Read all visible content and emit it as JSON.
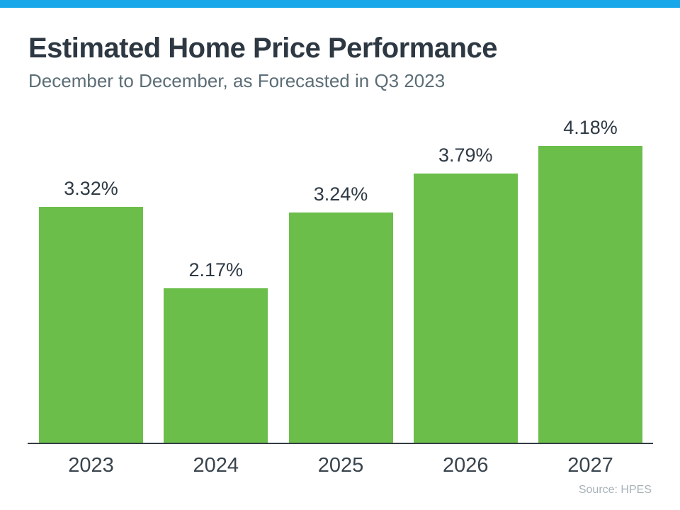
{
  "header": {
    "title": "Estimated Home Price Performance",
    "subtitle": "December to December, as Forecasted in Q3 2023"
  },
  "source": "Source: HPES",
  "colors": {
    "bar_green": "#6cbe4b",
    "top_strip_blue": "#18a8ea",
    "title_text": "#2d3842",
    "subtitle_text": "#5c6d76",
    "axis_line": "#333c44",
    "source_text": "#a7b2b8"
  },
  "chart_data": {
    "type": "bar",
    "categories": [
      "2023",
      "2024",
      "2025",
      "2026",
      "2027"
    ],
    "values": [
      3.32,
      2.17,
      3.24,
      3.79,
      4.18
    ],
    "labels": [
      "3.32%",
      "2.17%",
      "3.24%",
      "3.79%",
      "4.18%"
    ],
    "title": "Estimated Home Price Performance",
    "subtitle": "December to December, as Forecasted in Q3 2023",
    "xlabel": "",
    "ylabel": "",
    "ylim": [
      0,
      4.5
    ],
    "grid": false,
    "legend": false,
    "bar_color": "#6cbe4b",
    "source": "Source: HPES"
  }
}
